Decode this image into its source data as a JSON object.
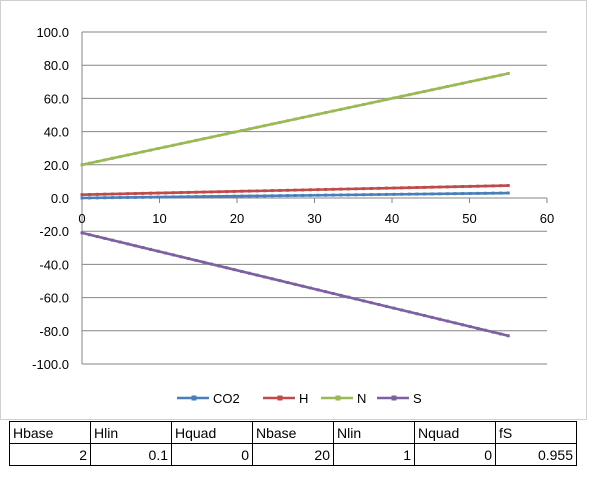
{
  "chart_data": {
    "type": "line",
    "xlim": [
      0,
      60
    ],
    "ylim": [
      -100,
      100
    ],
    "x_ticks": [
      "0",
      "10",
      "20",
      "30",
      "40",
      "50",
      "60"
    ],
    "y_ticks": [
      "100.0",
      "80.0",
      "60.0",
      "40.0",
      "20.0",
      "0.0",
      "-20.0",
      "-40.0",
      "-60.0",
      "-80.0",
      "-100.0"
    ],
    "grid": true,
    "legend_position": "bottom",
    "series": [
      {
        "name": "CO2",
        "color": "#4a7ebb",
        "x_start": 0,
        "x_end": 55,
        "y_start": 0,
        "y_end": 3
      },
      {
        "name": "H",
        "color": "#be4b48",
        "x_start": 0,
        "x_end": 55,
        "y_start": 2,
        "y_end": 7.5
      },
      {
        "name": "N",
        "color": "#98b954",
        "x_start": 0,
        "x_end": 55,
        "y_start": 20,
        "y_end": 75
      },
      {
        "name": "S",
        "color": "#7d60a0",
        "x_start": 0,
        "x_end": 55,
        "y_start": -21,
        "y_end": -83
      }
    ]
  },
  "table": {
    "headers": [
      "Hbase",
      "Hlin",
      "Hquad",
      "Nbase",
      "Nlin",
      "Nquad",
      "fS"
    ],
    "values": [
      "2",
      "0.1",
      "0",
      "20",
      "1",
      "0",
      "0.955"
    ]
  }
}
